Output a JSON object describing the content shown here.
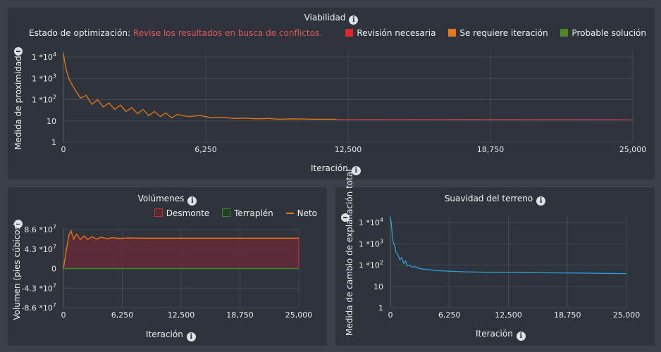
{
  "viabilidad": {
    "title": "Viabilidad",
    "status_label": "Estado de optimización:",
    "status_message": "Revise los resultados en busca de conflictos.",
    "legend": [
      {
        "label": "Revisión necesaria",
        "color": "#e3262b"
      },
      {
        "label": "Se requiere iteración",
        "color": "#e57a12"
      },
      {
        "label": "Probable solución",
        "color": "#4d8a25"
      }
    ]
  },
  "volumenes": {
    "title": "Volúmenes",
    "legend": [
      {
        "label": "Desmonte",
        "color": "#c62b36"
      },
      {
        "label": "Terraplén",
        "color": "#2f8a2b"
      },
      {
        "label": "Neto",
        "color": "#e57a12"
      }
    ]
  },
  "suavidad": {
    "title": "Suavidad del terreno"
  },
  "chart_data": [
    {
      "id": "viabilidad",
      "type": "line",
      "title": "Viabilidad",
      "xlabel": "Iteración",
      "ylabel": "Medida de proximidad",
      "yscale": "log",
      "xlim": [
        0,
        25000
      ],
      "ylim": [
        1,
        20000
      ],
      "x_ticks": [
        "0",
        "6,250",
        "12,500",
        "18,750",
        "25,000"
      ],
      "y_ticks": [
        {
          "base": "1 *10",
          "exp": "4"
        },
        {
          "base": "1 *10",
          "exp": "3"
        },
        {
          "base": "1 *10",
          "exp": "2"
        },
        {
          "base": "10",
          "exp": ""
        },
        {
          "base": "1",
          "exp": ""
        }
      ],
      "series": [
        {
          "color": "#e57a12",
          "x": [
            0,
            100,
            250,
            500,
            750,
            1000,
            1250,
            1500,
            1750,
            2000,
            2250,
            2500,
            2750,
            3000,
            3250,
            3500,
            3750,
            4000,
            4250,
            4500,
            4750,
            5000,
            5500,
            6000,
            6500,
            7000,
            7500,
            8000,
            8500,
            9000,
            9500,
            10000,
            11000,
            12000
          ],
          "y": [
            15000,
            3000,
            900,
            300,
            120,
            160,
            60,
            100,
            45,
            70,
            35,
            55,
            28,
            42,
            22,
            34,
            18,
            28,
            16,
            24,
            14,
            20,
            16,
            18,
            14,
            15,
            13,
            13.5,
            12.5,
            13,
            12,
            12.5,
            12,
            12
          ]
        },
        {
          "color": "#c13a3f",
          "x": [
            12000,
            25000
          ],
          "y": [
            11.8,
            11.5
          ]
        }
      ]
    },
    {
      "id": "volumenes",
      "type": "area",
      "title": "Volúmenes",
      "xlabel": "Iteración",
      "ylabel": "Volumen (pies cúbicos)",
      "xlim": [
        0,
        25000
      ],
      "ylim": [
        -86000000,
        86000000
      ],
      "x_ticks": [
        "0",
        "6,250",
        "12,500",
        "18,750",
        "25,000"
      ],
      "y_ticks": [
        {
          "base": "8.6 *10",
          "exp": "7"
        },
        {
          "base": "4.3 *10",
          "exp": "7"
        },
        {
          "base": "0",
          "exp": ""
        },
        {
          "base": "-4.3 *10",
          "exp": "7"
        },
        {
          "base": "-8.6 *10",
          "exp": "7"
        }
      ],
      "series": [
        {
          "name": "Desmonte",
          "color": "#c62b36",
          "x": [
            0,
            300,
            600,
            800,
            1100,
            1400,
            1800,
            2200,
            2600,
            3000,
            3500,
            4000,
            4600,
            5200,
            6000,
            7000,
            8000,
            10000,
            15000,
            20000,
            25000
          ],
          "y": [
            0,
            40000000,
            75000000,
            83000000,
            65000000,
            76000000,
            64000000,
            72000000,
            64000000,
            70000000,
            65000000,
            69000000,
            66000000,
            68000000,
            66500000,
            67500000,
            67000000,
            67000000,
            67000000,
            67000000,
            67000000
          ]
        },
        {
          "name": "Terraplén",
          "color": "#2f8a2b",
          "x": [
            0,
            25000
          ],
          "y": [
            0,
            0
          ]
        }
      ]
    },
    {
      "id": "suavidad",
      "type": "line",
      "title": "Suavidad del terreno",
      "xlabel": "Iteración",
      "ylabel": "Medida de cambio de explanación total",
      "yscale": "log",
      "xlim": [
        0,
        25000
      ],
      "ylim": [
        1,
        20000
      ],
      "x_ticks": [
        "0",
        "6,250",
        "12,500",
        "18,750",
        "25,000"
      ],
      "y_ticks": [
        {
          "base": "1 *10",
          "exp": "4"
        },
        {
          "base": "1 *10",
          "exp": "3"
        },
        {
          "base": "1 *10",
          "exp": "2"
        },
        {
          "base": "10",
          "exp": ""
        },
        {
          "base": "1",
          "exp": ""
        }
      ],
      "series": [
        {
          "color": "#2d9fd8",
          "x": [
            0,
            100,
            200,
            300,
            450,
            600,
            800,
            1000,
            1200,
            1400,
            1600,
            1800,
            2000,
            2300,
            2600,
            3000,
            3500,
            4000,
            5000,
            6000,
            7000,
            8000,
            10000,
            12500,
            15000,
            17500,
            20000,
            22500,
            25000
          ],
          "y": [
            18000,
            9000,
            2500,
            1200,
            800,
            400,
            300,
            180,
            220,
            120,
            160,
            90,
            100,
            80,
            85,
            70,
            65,
            62,
            55,
            52,
            50,
            48,
            46,
            45,
            44,
            43,
            42,
            41,
            40
          ]
        }
      ]
    }
  ]
}
